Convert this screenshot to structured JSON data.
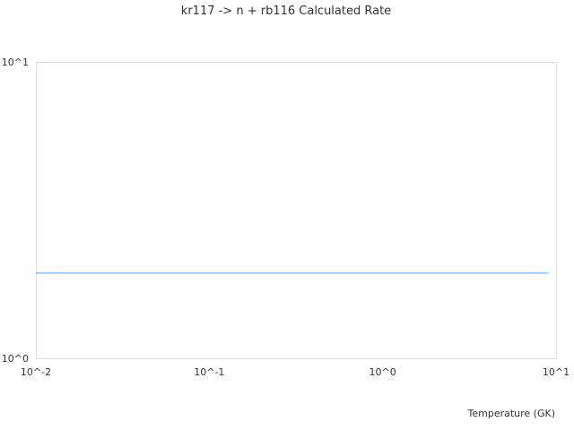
{
  "chart_data": {
    "type": "line",
    "title": "kr117 -> n + rb116 Calculated Rate",
    "xlabel": "Temperature (GK)",
    "ylabel": "",
    "xscale": "log",
    "yscale": "log",
    "xlim": [
      0.01,
      10
    ],
    "ylim": [
      1,
      10
    ],
    "xticks": [
      {
        "value": 0.01,
        "label": "10^-2"
      },
      {
        "value": 0.1,
        "label": "10^-1"
      },
      {
        "value": 1,
        "label": "10^0"
      },
      {
        "value": 10,
        "label": "10^1"
      }
    ],
    "yticks": [
      {
        "value": 1,
        "label": "10^0"
      },
      {
        "value": 10,
        "label": "10^1"
      }
    ],
    "grid": false,
    "series": [
      {
        "color": "#4da6ff",
        "x": [
          0.01,
          9.1
        ],
        "y": [
          1.94,
          1.94
        ]
      }
    ]
  }
}
